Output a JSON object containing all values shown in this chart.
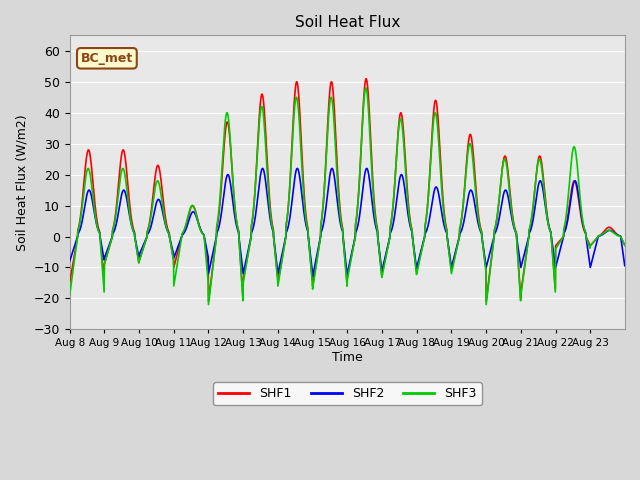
{
  "title": "Soil Heat Flux",
  "ylabel": "Soil Heat Flux (W/m2)",
  "xlabel": "Time",
  "ylim": [
    -30,
    65
  ],
  "yticks": [
    -30,
    -20,
    -10,
    0,
    10,
    20,
    30,
    40,
    50,
    60
  ],
  "xtick_labels": [
    "Aug 8",
    "Aug 9",
    "Aug 10",
    "Aug 11",
    "Aug 12",
    "Aug 13",
    "Aug 14",
    "Aug 15",
    "Aug 16",
    "Aug 17",
    "Aug 18",
    "Aug 19",
    "Aug 20",
    "Aug 21",
    "Aug 22",
    "Aug 23"
  ],
  "annotation_text": "BC_met",
  "annotation_color": "#8B4513",
  "annotation_bg": "#FFFACD",
  "shf1_color": "#FF0000",
  "shf2_color": "#0000FF",
  "shf3_color": "#00CC00",
  "line_width": 1.2,
  "bg_color": "#E8E8E8",
  "grid_color": "#FFFFFF",
  "day_peaks_shf1": [
    28,
    28,
    23,
    10,
    37,
    46,
    50,
    50,
    51,
    40,
    44,
    33,
    26,
    26,
    18,
    3
  ],
  "day_peaks_shf2": [
    15,
    15,
    12,
    8,
    20,
    22,
    22,
    22,
    22,
    20,
    16,
    15,
    15,
    18,
    18,
    2
  ],
  "day_peaks_shf3": [
    22,
    22,
    18,
    10,
    40,
    42,
    45,
    45,
    48,
    38,
    40,
    30,
    25,
    25,
    29,
    2
  ],
  "day_neg_shf1": [
    -15,
    -9,
    -8,
    -10,
    -21,
    -14,
    -15,
    -16,
    -13,
    -12,
    -11,
    -11,
    -21,
    -18,
    -3,
    -3
  ],
  "day_neg_shf2": [
    -8,
    -7,
    -6,
    -7,
    -12,
    -12,
    -12,
    -13,
    -12,
    -11,
    -10,
    -10,
    -10,
    -10,
    -10,
    -10
  ],
  "day_neg_shf3": [
    -19,
    -9,
    -8,
    -16,
    -22,
    -15,
    -16,
    -17,
    -14,
    -13,
    -12,
    -12,
    -22,
    -19,
    -4,
    -3
  ]
}
